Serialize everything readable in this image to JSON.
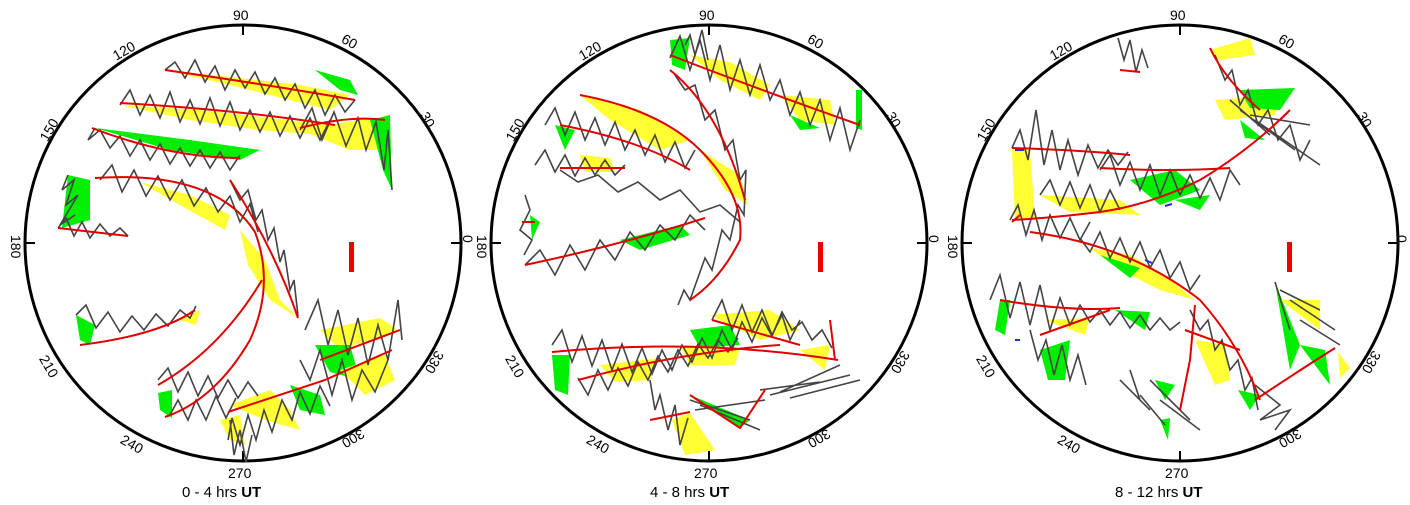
{
  "colors": {
    "trace": "#444444",
    "track": "#e00000",
    "fill_positive": "#ffff33",
    "fill_negative": "#00ee00",
    "scale_bar": "#ee0000",
    "ring": "#000000"
  },
  "angle_labels": [
    "90",
    "60",
    "30",
    "0",
    "330",
    "300",
    "270",
    "240",
    "210",
    "180",
    "150",
    "120"
  ],
  "panels": [
    {
      "caption_prefix": "0 - 4 hrs ",
      "caption_bold": "UT"
    },
    {
      "caption_prefix": "4 - 8 hrs ",
      "caption_bold": "UT"
    },
    {
      "caption_prefix": "8 - 12 hrs ",
      "caption_bold": "UT"
    }
  ]
}
